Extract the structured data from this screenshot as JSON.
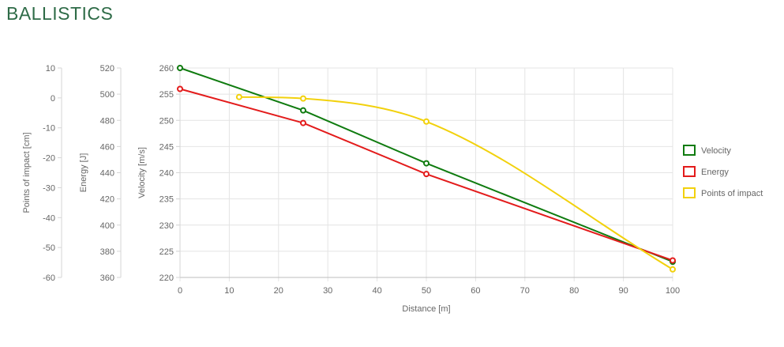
{
  "page": {
    "title": "BALLISTICS"
  },
  "chart_data": {
    "type": "line",
    "x_axis": {
      "title": "Distance [m]",
      "min": 0,
      "max": 100,
      "ticks": [
        0,
        10,
        20,
        30,
        40,
        50,
        60,
        70,
        80,
        90,
        100
      ]
    },
    "y_axes": [
      {
        "id": "poi",
        "title": "Points of impact [cm]",
        "min": -60,
        "max": 10,
        "ticks": [
          10,
          0,
          -10,
          -20,
          -30,
          -40,
          -50,
          -60
        ]
      },
      {
        "id": "energy",
        "title": "Energy [J]",
        "min": 360,
        "max": 520,
        "ticks": [
          520,
          500,
          480,
          460,
          440,
          420,
          400,
          380,
          360
        ]
      },
      {
        "id": "velocity",
        "title": "Velocity [m/s]",
        "min": 220,
        "max": 260,
        "ticks": [
          260,
          255,
          250,
          245,
          240,
          235,
          230,
          225,
          220
        ]
      }
    ],
    "grid": true,
    "legend_position": "right",
    "series": [
      {
        "name": "Velocity",
        "axis": "velocity",
        "color": "#0f7b0f",
        "smooth": false,
        "points": [
          [
            0,
            260
          ],
          [
            25,
            251.9
          ],
          [
            50,
            241.8
          ],
          [
            100,
            223
          ]
        ]
      },
      {
        "name": "Energy",
        "axis": "energy",
        "color": "#e31b1b",
        "smooth": false,
        "points": [
          [
            0,
            504
          ],
          [
            25,
            478
          ],
          [
            50,
            439
          ],
          [
            100,
            373
          ]
        ]
      },
      {
        "name": "Points of impact",
        "axis": "poi",
        "color": "#f2d10c",
        "smooth": true,
        "points": [
          [
            12,
            0.3
          ],
          [
            25,
            -0.2
          ],
          [
            50,
            -7.9
          ],
          [
            100,
            -57.3
          ]
        ]
      }
    ]
  }
}
